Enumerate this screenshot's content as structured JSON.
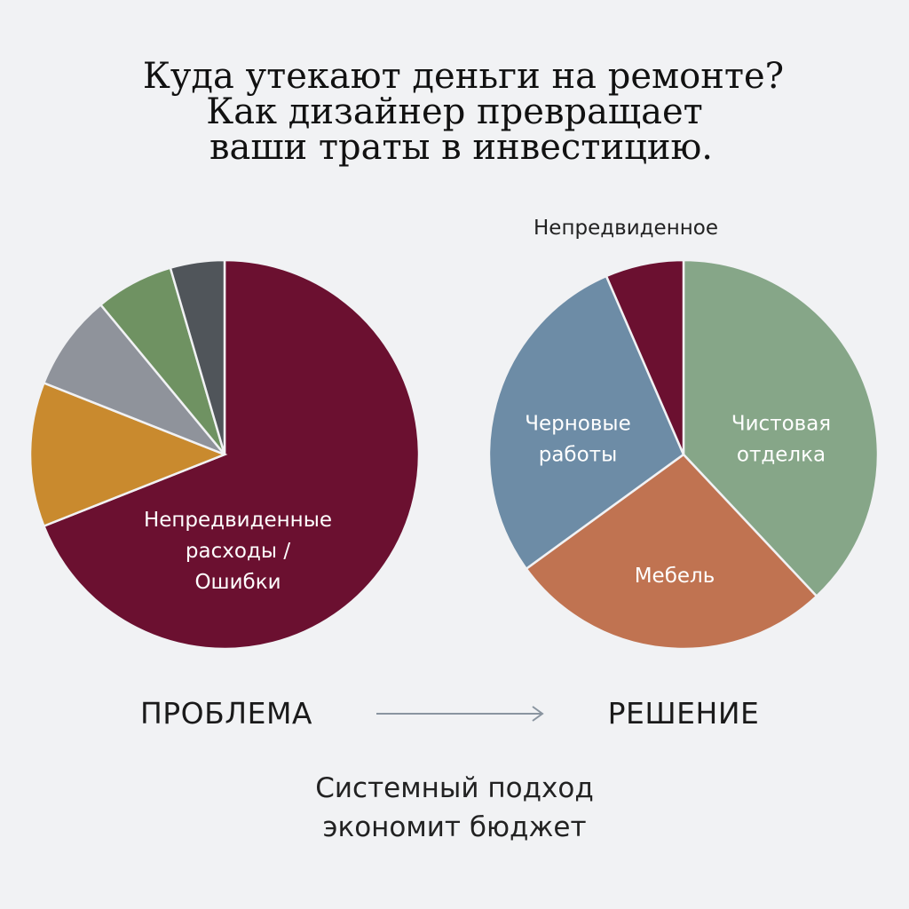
{
  "title": {
    "line1": "Куда утекают деньги на ремонте?",
    "line2": "Как дизайнер превращает",
    "line3": "ваши траты в инвестицию."
  },
  "chart_data": [
    {
      "type": "pie",
      "caption": "ПРОБЛЕМА",
      "slices": [
        {
          "label": "Непредвиденные расходы / Ошибки",
          "value": 69,
          "color": "#6b1030",
          "label_lines": [
            "Непредвиденные",
            "расходы /",
            "Ошибки"
          ]
        },
        {
          "label": "",
          "value": 12,
          "color": "#c98a2e"
        },
        {
          "label": "",
          "value": 8,
          "color": "#8f939b"
        },
        {
          "label": "",
          "value": 6.5,
          "color": "#6f9262"
        },
        {
          "label": "",
          "value": 4.5,
          "color": "#50555a"
        }
      ]
    },
    {
      "type": "pie",
      "caption": "РЕШЕНИЕ",
      "slices": [
        {
          "label": "Чистовая отделка",
          "value": 38,
          "color": "#86a688",
          "label_lines": [
            "Чистовая",
            "отделка"
          ]
        },
        {
          "label": "Мебель",
          "value": 27,
          "color": "#c07351",
          "label_lines": [
            "Мебель"
          ]
        },
        {
          "label": "Черновые работы",
          "value": 28.5,
          "color": "#6d8ca6",
          "label_lines": [
            "Черновые",
            "работы"
          ]
        },
        {
          "label": "Непредвиденное",
          "value": 6.5,
          "color": "#6b1030"
        }
      ]
    }
  ],
  "footer": {
    "line1": "Системный подход",
    "line2": "экономит бюджет"
  },
  "colors": {
    "background": "#f1f2f4",
    "arrow": "#8a95a0"
  }
}
